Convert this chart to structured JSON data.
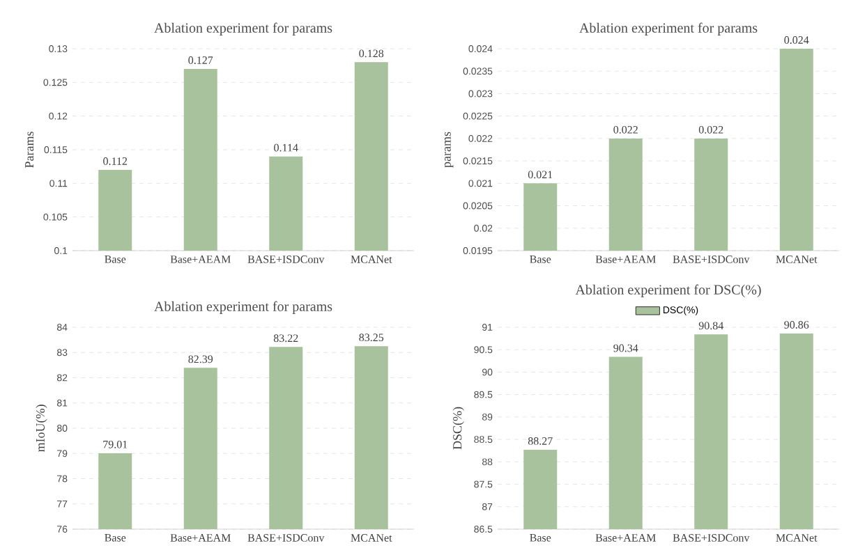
{
  "chart_data": [
    {
      "type": "bar",
      "title": "Ablation experiment for params",
      "ylabel": "Params",
      "categories": [
        "Base",
        "Base+AEAM",
        "BASE+ISDConv",
        "MCANet"
      ],
      "values": [
        0.112,
        0.127,
        0.114,
        0.128
      ],
      "color": "#a7c29c",
      "ylim": [
        0.1,
        0.13
      ],
      "yticks": [
        0.1,
        0.105,
        0.11,
        0.115,
        0.12,
        0.125,
        0.13
      ],
      "grid": "y",
      "data_labels": true
    },
    {
      "type": "bar",
      "title": "Ablation experiment for params",
      "ylabel": "params",
      "categories": [
        "Base",
        "Base+AEAM",
        "BASE+ISDConv",
        "MCANet"
      ],
      "values": [
        0.021,
        0.022,
        0.022,
        0.024
      ],
      "color": "#a7c29c",
      "ylim": [
        0.0195,
        0.024
      ],
      "yticks": [
        0.0195,
        0.02,
        0.0205,
        0.021,
        0.0215,
        0.022,
        0.0225,
        0.023,
        0.0235,
        0.024
      ],
      "grid": "y",
      "data_labels": true
    },
    {
      "type": "bar",
      "title": "Ablation experiment for params",
      "ylabel": "mIoU(%)",
      "categories": [
        "Base",
        "Base+AEAM",
        "BASE+ISDConv",
        "MCANet"
      ],
      "values": [
        79.01,
        82.39,
        83.22,
        83.25
      ],
      "color": "#a7c29c",
      "ylim": [
        76,
        84
      ],
      "yticks": [
        76,
        77,
        78,
        79,
        80,
        81,
        82,
        83,
        84
      ],
      "grid": "y",
      "data_labels": true
    },
    {
      "type": "bar",
      "title": "Ablation experiment for DSC(%)",
      "ylabel": "DSC(%)",
      "categories": [
        "Base",
        "Base+AEAM",
        "BASE+ISDConv",
        "MCANet"
      ],
      "series": [
        {
          "name": "DSC(%)",
          "color": "#a7c29c",
          "values": [
            88.27,
            90.34,
            90.84,
            90.86
          ]
        }
      ],
      "ylim": [
        86.5,
        91
      ],
      "yticks": [
        86.5,
        87,
        87.5,
        88,
        88.5,
        89,
        89.5,
        90,
        90.5,
        91
      ],
      "grid": "y",
      "data_labels": true,
      "legend": "top"
    }
  ]
}
